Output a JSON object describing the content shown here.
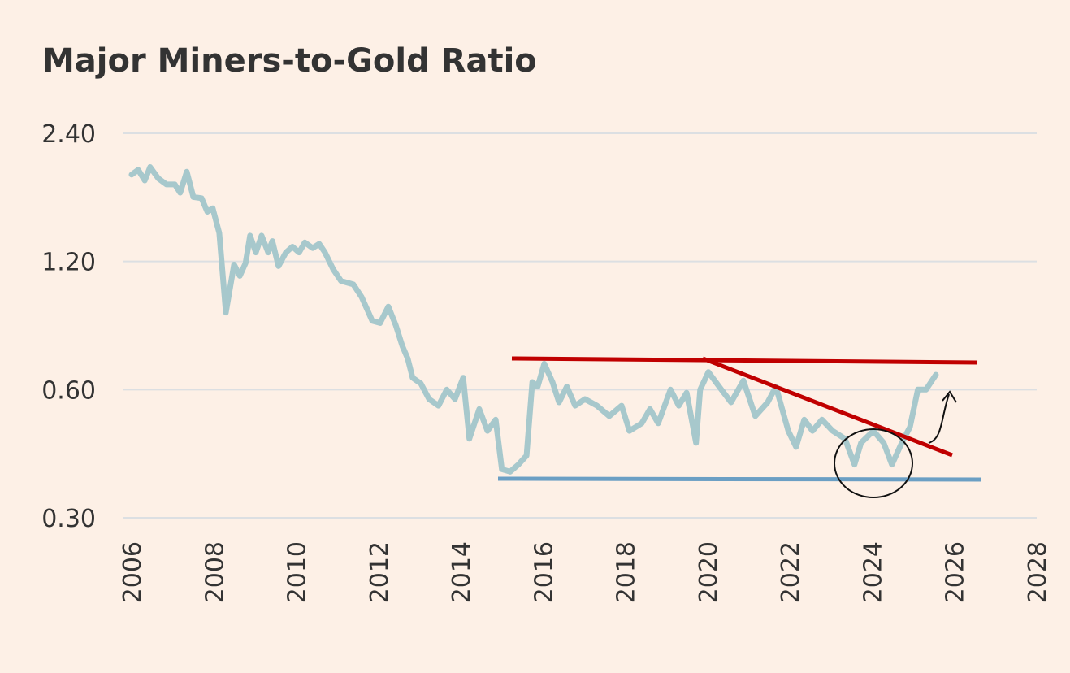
{
  "chart_data": {
    "type": "line",
    "title": "Major Miners-to-Gold Ratio",
    "x": [
      2006.0,
      2006.16,
      2006.32,
      2006.45,
      2006.65,
      2006.85,
      2007.05,
      2007.18,
      2007.34,
      2007.5,
      2007.7,
      2007.84,
      2007.97,
      2008.13,
      2008.29,
      2008.49,
      2008.63,
      2008.77,
      2008.88,
      2009.02,
      2009.16,
      2009.32,
      2009.42,
      2009.57,
      2009.75,
      2009.91,
      2010.07,
      2010.21,
      2010.4,
      2010.56,
      2010.7,
      2010.9,
      2011.09,
      2011.39,
      2011.59,
      2011.85,
      2012.04,
      2012.24,
      2012.42,
      2012.58,
      2012.71,
      2012.83,
      2013.03,
      2013.23,
      2013.46,
      2013.66,
      2013.86,
      2014.06,
      2014.21,
      2014.45,
      2014.65,
      2014.85,
      2015.0,
      2015.2,
      2015.4,
      2015.6,
      2015.74,
      2015.87,
      2016.03,
      2016.23,
      2016.39,
      2016.58,
      2016.78,
      2017.02,
      2017.31,
      2017.61,
      2017.91,
      2018.1,
      2018.4,
      2018.6,
      2018.8,
      2019.1,
      2019.3,
      2019.49,
      2019.72,
      2019.82,
      2020.02,
      2020.28,
      2020.57,
      2020.87,
      2021.16,
      2021.46,
      2021.66,
      2021.96,
      2022.15,
      2022.35,
      2022.55,
      2022.78,
      2023.04,
      2023.34,
      2023.57,
      2023.73,
      2024.03,
      2024.28,
      2024.48,
      2024.72,
      2024.92,
      2025.11,
      2025.31,
      2025.55
    ],
    "series": [
      {
        "name": "Major Miners-to-Gold Ratio",
        "color": "#a7c8cc",
        "values": [
          1.92,
          1.97,
          1.86,
          2.0,
          1.88,
          1.82,
          1.82,
          1.74,
          1.95,
          1.7,
          1.69,
          1.57,
          1.6,
          1.4,
          0.91,
          1.18,
          1.11,
          1.19,
          1.38,
          1.26,
          1.38,
          1.26,
          1.34,
          1.17,
          1.26,
          1.3,
          1.26,
          1.33,
          1.29,
          1.32,
          1.26,
          1.15,
          1.08,
          1.06,
          0.99,
          0.87,
          0.86,
          0.94,
          0.85,
          0.76,
          0.71,
          0.64,
          0.62,
          0.57,
          0.55,
          0.6,
          0.57,
          0.64,
          0.46,
          0.54,
          0.48,
          0.51,
          0.39,
          0.385,
          0.4,
          0.42,
          0.625,
          0.61,
          0.69,
          0.625,
          0.56,
          0.61,
          0.55,
          0.57,
          0.55,
          0.52,
          0.55,
          0.48,
          0.5,
          0.54,
          0.5,
          0.6,
          0.55,
          0.59,
          0.45,
          0.6,
          0.66,
          0.61,
          0.56,
          0.63,
          0.52,
          0.56,
          0.61,
          0.48,
          0.44,
          0.51,
          0.48,
          0.51,
          0.48,
          0.46,
          0.4,
          0.45,
          0.48,
          0.45,
          0.4,
          0.45,
          0.49,
          0.6,
          0.6,
          0.65
        ]
      }
    ],
    "xlim": [
      2006,
      2028
    ],
    "xticks": [
      2006,
      2008,
      2010,
      2012,
      2014,
      2016,
      2018,
      2020,
      2022,
      2024,
      2026,
      2028
    ],
    "ylim": [
      0.3,
      2.4
    ],
    "log_scale": true,
    "yticks": [
      {
        "value": 0.3,
        "label": "0.30"
      },
      {
        "value": 0.6,
        "label": "0.60"
      },
      {
        "value": 1.2,
        "label": "1.20"
      },
      {
        "value": 2.4,
        "label": "2.40"
      }
    ],
    "grid": true
  }
}
